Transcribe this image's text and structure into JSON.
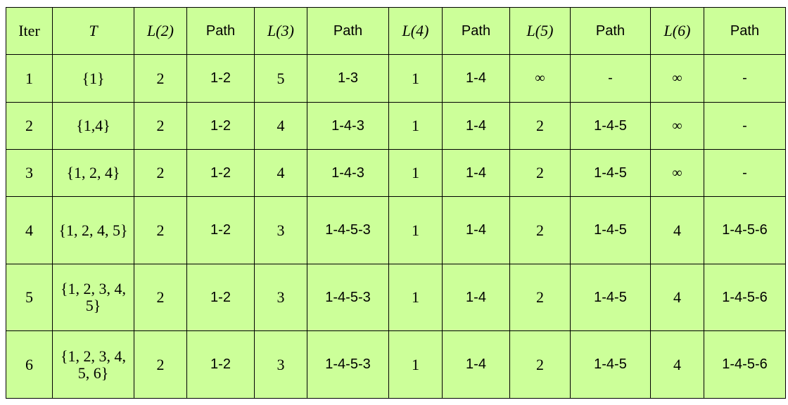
{
  "headers": {
    "iter": "Iter",
    "t": "T",
    "l2": "L(2)",
    "p2": "Path",
    "l3": "L(3)",
    "p3": "Path",
    "l4": "L(4)",
    "p4": "Path",
    "l5": "L(5)",
    "p5": "Path",
    "l6": "L(6)",
    "p6": "Path"
  },
  "rows": [
    {
      "iter": "1",
      "t": "{1}",
      "l2": "2",
      "p2": "1-2",
      "l3": "5",
      "p3": "1-3",
      "l4": "1",
      "p4": "1-4",
      "l5": "∞",
      "p5": "-",
      "l6": "∞",
      "p6": "-"
    },
    {
      "iter": "2",
      "t": "{1,4}",
      "l2": "2",
      "p2": "1-2",
      "l3": "4",
      "p3": "1-4-3",
      "l4": "1",
      "p4": "1-4",
      "l5": "2",
      "p5": "1-4-5",
      "l6": "∞",
      "p6": "-"
    },
    {
      "iter": "3",
      "t": "{1, 2, 4}",
      "l2": "2",
      "p2": "1-2",
      "l3": "4",
      "p3": "1-4-3",
      "l4": "1",
      "p4": "1-4",
      "l5": "2",
      "p5": "1-4-5",
      "l6": "∞",
      "p6": "-"
    },
    {
      "iter": "4",
      "t": "{1, 2, 4, 5}",
      "l2": "2",
      "p2": "1-2",
      "l3": "3",
      "p3": "1-4-5-3",
      "l4": "1",
      "p4": "1-4",
      "l5": "2",
      "p5": "1-4-5",
      "l6": "4",
      "p6": "1-4-5-6"
    },
    {
      "iter": "5",
      "t": "{1, 2, 3, 4, 5}",
      "l2": "2",
      "p2": "1-2",
      "l3": "3",
      "p3": "1-4-5-3",
      "l4": "1",
      "p4": "1-4",
      "l5": "2",
      "p5": "1-4-5",
      "l6": "4",
      "p6": "1-4-5-6"
    },
    {
      "iter": "6",
      "t": "{1, 2, 3, 4, 5, 6}",
      "l2": "2",
      "p2": "1-2",
      "l3": "3",
      "p3": "1-4-5-3",
      "l4": "1",
      "p4": "1-4",
      "l5": "2",
      "p5": "1-4-5",
      "l6": "4",
      "p6": "1-4-5-6"
    }
  ],
  "colors": {
    "cell_background": "#ccff99",
    "border": "#000000"
  }
}
